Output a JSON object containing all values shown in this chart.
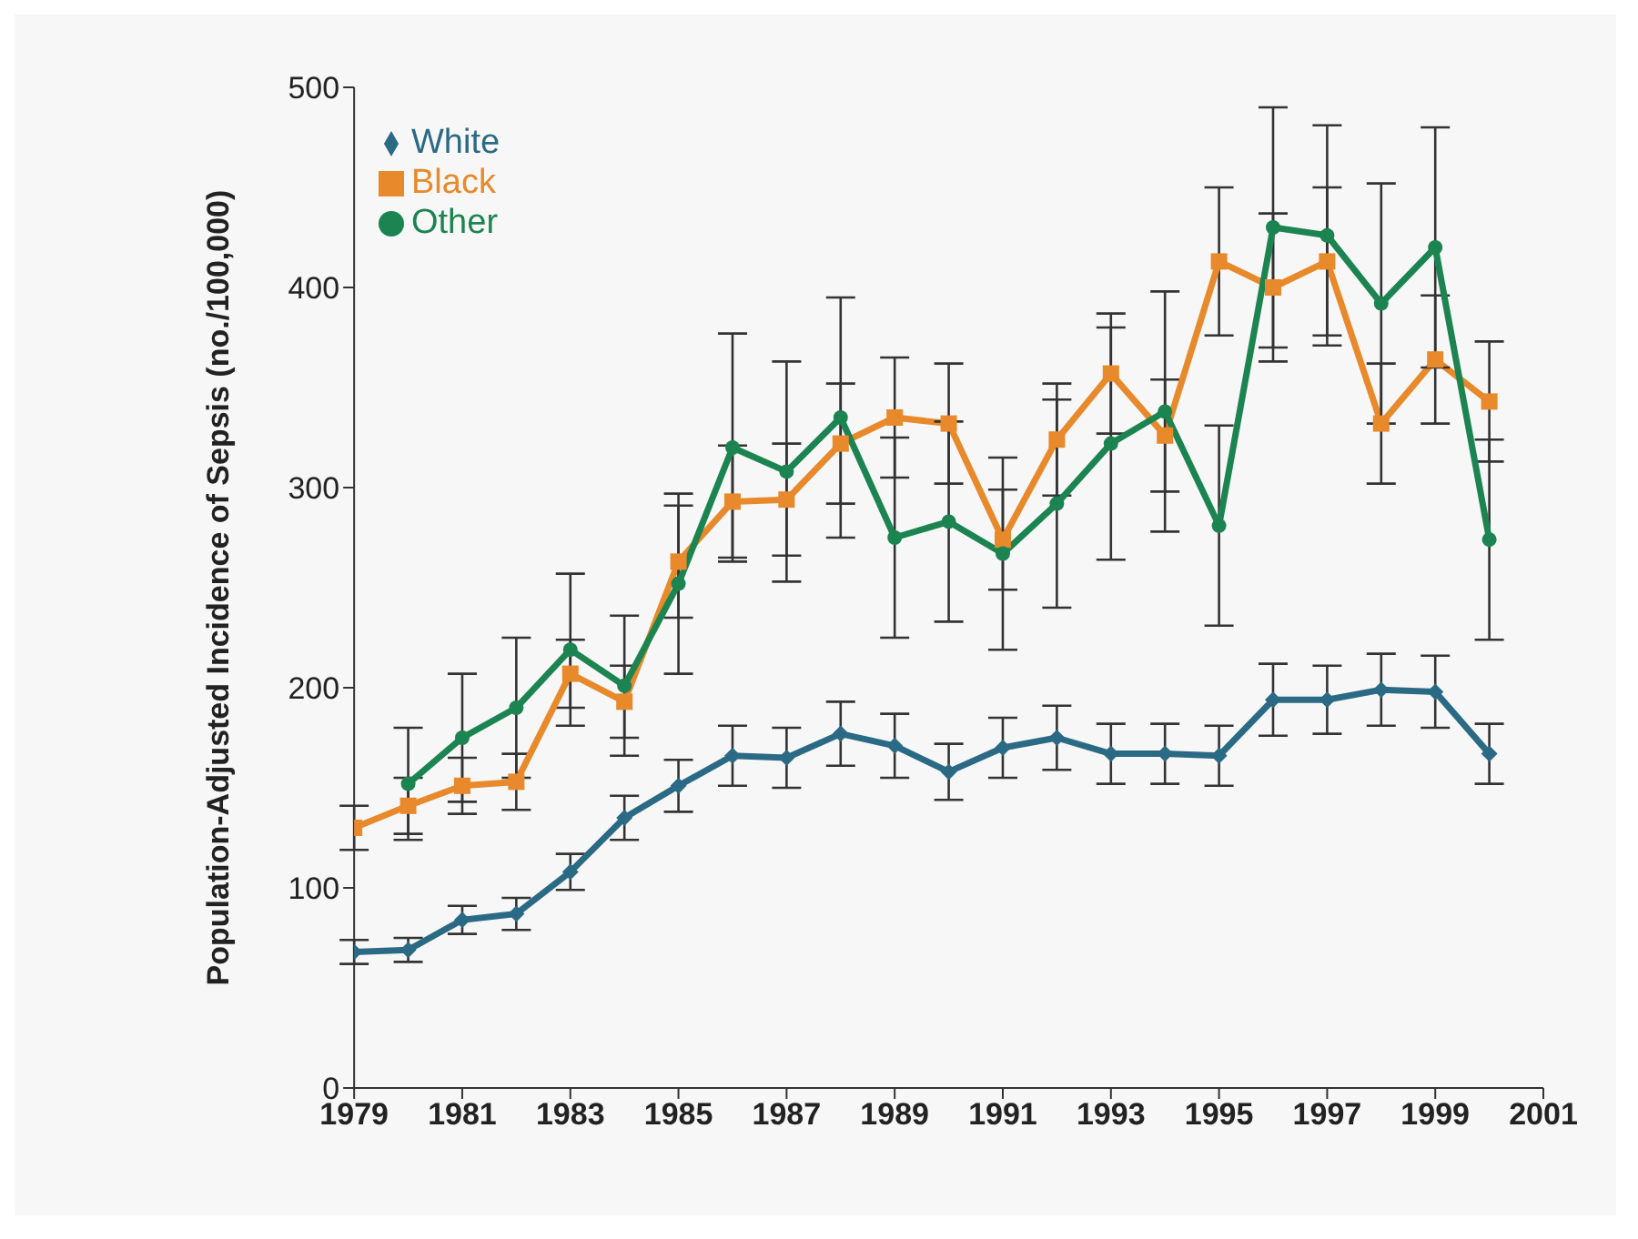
{
  "chart_data": {
    "type": "line",
    "ylabel": "Population-Adjusted Incidence of Sepsis (no./100,000)",
    "x": [
      1979,
      1980,
      1981,
      1982,
      1983,
      1984,
      1985,
      1986,
      1987,
      1988,
      1989,
      1990,
      1991,
      1992,
      1993,
      1994,
      1995,
      1996,
      1997,
      1998,
      1999,
      2000
    ],
    "xlim": [
      1979,
      2001
    ],
    "xticks": [
      1979,
      1981,
      1983,
      1985,
      1987,
      1989,
      1991,
      1993,
      1995,
      1997,
      1999,
      2001
    ],
    "ylim": [
      0,
      500
    ],
    "yticks": [
      0,
      100,
      200,
      300,
      400,
      500
    ],
    "grid": false,
    "legend": "top left",
    "line_style": "solid",
    "series": [
      {
        "name": "White",
        "color": "#2b6a84",
        "marker": "diamond",
        "values": [
          68,
          69,
          84,
          87,
          108,
          135,
          151,
          166,
          165,
          177,
          171,
          158,
          170,
          175,
          167,
          167,
          166,
          194,
          194,
          199,
          198,
          167
        ],
        "errors": [
          6,
          6,
          7,
          8,
          9,
          11,
          13,
          15,
          15,
          16,
          16,
          14,
          15,
          16,
          15,
          15,
          15,
          18,
          17,
          18,
          18,
          15
        ]
      },
      {
        "name": "Black",
        "color": "#e8892b",
        "marker": "square",
        "values": [
          130,
          141,
          151,
          153,
          207,
          193,
          263,
          293,
          294,
          322,
          335,
          332,
          274,
          324,
          357,
          326,
          413,
          400,
          413,
          332,
          364,
          343
        ],
        "errors": [
          11,
          14,
          14,
          14,
          17,
          18,
          28,
          28,
          28,
          30,
          30,
          30,
          25,
          28,
          30,
          28,
          37,
          37,
          37,
          30,
          32,
          30
        ]
      },
      {
        "name": "Other",
        "color": "#1b8450",
        "marker": "circle",
        "values": [
          null,
          152,
          175,
          190,
          219,
          201,
          252,
          320,
          308,
          335,
          275,
          283,
          267,
          292,
          322,
          338,
          281,
          430,
          426,
          392,
          420,
          274
        ],
        "errors": [
          null,
          28,
          32,
          35,
          38,
          35,
          45,
          57,
          55,
          60,
          50,
          50,
          48,
          52,
          58,
          60,
          50,
          60,
          55,
          60,
          60,
          50
        ]
      }
    ]
  }
}
